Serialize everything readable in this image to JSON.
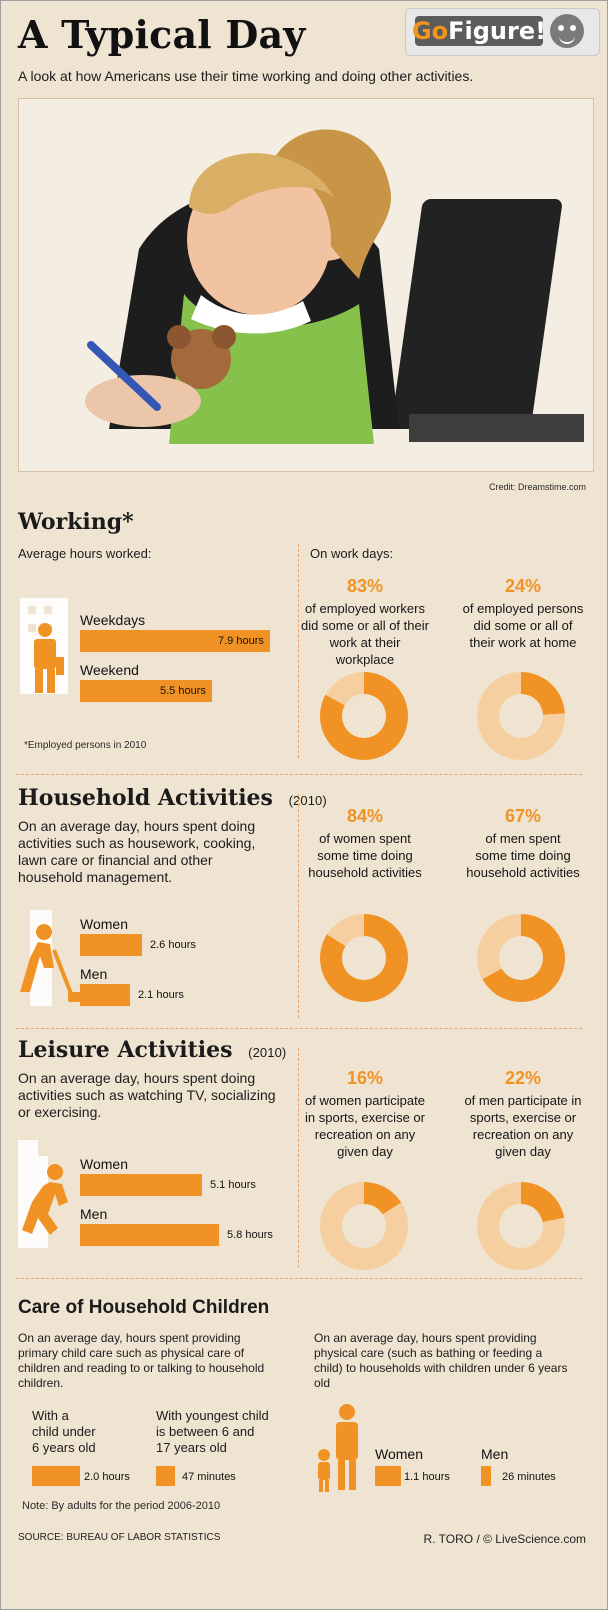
{
  "header": {
    "title": "A Typical Day",
    "subtitle": "A look at how Americans use their time working and doing other activities.",
    "logo_go": "Go",
    "logo_figure": "Figure!"
  },
  "photo": {
    "credit": "Credit: Dreamstime.com"
  },
  "working": {
    "title": "Working*",
    "left_label": "Average hours worked:",
    "right_label": "On work days:",
    "bars": [
      {
        "label": "Weekdays",
        "value_text": "7.9 hours",
        "value": 7.9
      },
      {
        "label": "Weekend",
        "value_text": "5.5 hours",
        "value": 5.5
      }
    ],
    "note": "*Employed persons in 2010",
    "stats": [
      {
        "pct": "83%",
        "text": "of employed workers\ndid some or all of their\nwork at their workplace",
        "value": 83
      },
      {
        "pct": "24%",
        "text": "of employed persons\ndid some or all of\ntheir work at home",
        "value": 24
      }
    ]
  },
  "household": {
    "title": "Household Activities",
    "year": "(2010)",
    "description": "On an average day, hours spent doing activities such as housework, cooking, lawn care or financial and other household management.",
    "bars": [
      {
        "label": "Women",
        "value_text": "2.6 hours",
        "value": 2.6
      },
      {
        "label": "Men",
        "value_text": "2.1 hours",
        "value": 2.1
      }
    ],
    "stats": [
      {
        "pct": "84%",
        "text": "of women spent\nsome time doing\nhousehold activities",
        "value": 84
      },
      {
        "pct": "67%",
        "text": "of men spent\nsome time doing\nhousehold activities",
        "value": 67
      }
    ]
  },
  "leisure": {
    "title": "Leisure Activities",
    "year": "(2010)",
    "description": "On an average day, hours spent doing activities such as watching TV, socializing or exercising.",
    "bars": [
      {
        "label": "Women",
        "value_text": "5.1 hours",
        "value": 5.1
      },
      {
        "label": "Men",
        "value_text": "5.8 hours",
        "value": 5.8
      }
    ],
    "stats": [
      {
        "pct": "16%",
        "text": "of women participate\nin sports, exercise or\nrecreation on any\ngiven day",
        "value": 16
      },
      {
        "pct": "22%",
        "text": "of men participate in\nsports, exercise or\nrecreation on any\ngiven day",
        "value": 22
      }
    ]
  },
  "care": {
    "title": "Care of Household Children",
    "left_description": "On an average day, hours spent providing primary child care such as physical care of children and reading to or talking to household children.",
    "right_description": "On an average day, hours spent providing physical care (such as bathing or feeding a child) to households with children under 6 years old",
    "left_groups": [
      {
        "label": "With a\nchild under\n6 years old",
        "value_text": "2.0 hours",
        "value": 2.0
      },
      {
        "label": "With youngest child\nis between 6 and\n17 years old",
        "value_text": "47 minutes",
        "value": 47
      }
    ],
    "right_bars": [
      {
        "label": "Women",
        "value_text": "1.1 hours",
        "value": 1.1
      },
      {
        "label": "Men",
        "value_text": "26 minutes",
        "value": 26
      }
    ],
    "note": "Note: By adults for the period 2006-2010"
  },
  "footer": {
    "source": "SOURCE: BUREAU OF LABOR STATISTICS",
    "author": "R. TORO / © LiveScience.com"
  },
  "colors": {
    "accent": "#f19324",
    "accent_light": "#f5cf9f",
    "background": "#efe4d2"
  }
}
